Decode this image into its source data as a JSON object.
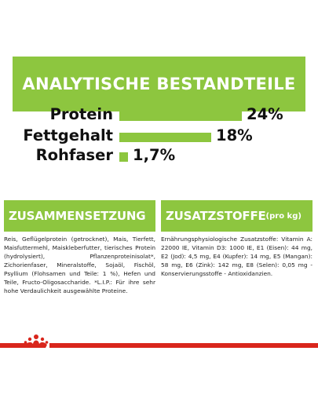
{
  "header": {
    "title": "ANALYTISCHE BESTANDTEILE"
  },
  "stats": [
    {
      "label": "Protein",
      "value": "24%",
      "percent": 24
    },
    {
      "label": "Fettgehalt",
      "value": "18%",
      "percent": 18
    },
    {
      "label": "Rohfaser",
      "value": "1,7%",
      "percent": 1.7
    }
  ],
  "composition": {
    "title": "ZUSAMMENSETZUNG",
    "text": "Reis, Geflügelprotein (getrocknet), Mais, Tierfett, Maisfuttermehl, Maiskleberfutter, tierisches Protein (hydrolysiert), Pflanzenproteinisolat*, Zichorienfaser, Mineralstoffe, Sojaöl, Fischöl, Psyllium (Flohsamen und Teile: 1 %), Hefen und Teile, Fructo-Oligosaccharide. *L.I.P.: Für ihre sehr hohe Verdaulichkeit ausgewählte Proteine."
  },
  "additives": {
    "title": "ZUSATZSTOFFE",
    "title_suffix": "(pro kg)",
    "text": "Ernährungsphysiologische Zusatzstoffe: Vitamin A: 22000 IE, Vitamin D3: 1000 IE, E1 (Eisen): 44 mg, E2 (Jod): 4,5 mg, E4 (Kupfer): 14 mg, E5 (Mangan): 58 mg, E6 (Zink): 142 mg, E8 (Selen): 0,05 mg - Konservierungsstoffe - Antioxidanzien."
  },
  "colors": {
    "accent": "#8dc63f",
    "brand_red": "#d9261c"
  },
  "logo": {
    "icon": "crown-icon"
  }
}
